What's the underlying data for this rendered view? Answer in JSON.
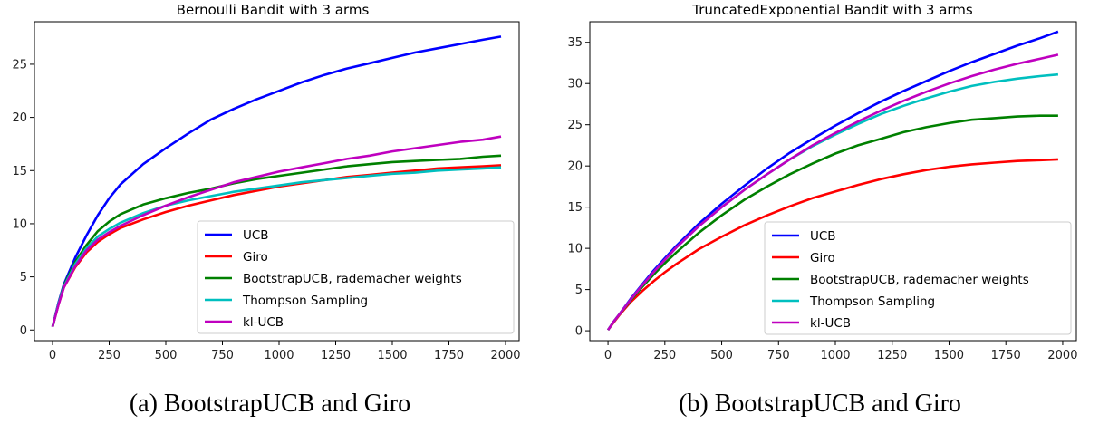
{
  "chart_data": [
    {
      "type": "line",
      "title": "Bernoulli Bandit with 3 arms",
      "caption": "(a) BootstrapUCB and Giro",
      "xlabel": "",
      "ylabel": "",
      "xlim": [
        -80,
        2060
      ],
      "ylim": [
        -1,
        29
      ],
      "xticks": [
        0,
        250,
        500,
        750,
        1000,
        1250,
        1500,
        1750,
        2000
      ],
      "yticks": [
        0,
        5,
        10,
        15,
        20,
        25
      ],
      "grid": false,
      "legend_position": "lower-right",
      "x": [
        0,
        25,
        50,
        100,
        150,
        200,
        250,
        300,
        400,
        500,
        600,
        700,
        800,
        900,
        1000,
        1100,
        1200,
        1300,
        1400,
        1500,
        1600,
        1700,
        1800,
        1900,
        1980
      ],
      "series": [
        {
          "name": "UCB",
          "color": "#0000ff",
          "values": [
            0.3,
            2.5,
            4.3,
            6.8,
            8.9,
            10.8,
            12.4,
            13.7,
            15.6,
            17.1,
            18.5,
            19.8,
            20.8,
            21.7,
            22.5,
            23.3,
            24.0,
            24.6,
            25.1,
            25.6,
            26.1,
            26.5,
            26.9,
            27.3,
            27.6
          ]
        },
        {
          "name": "Giro",
          "color": "#ff0000",
          "values": [
            0.3,
            2.3,
            4.0,
            5.9,
            7.3,
            8.3,
            9.0,
            9.6,
            10.4,
            11.1,
            11.7,
            12.2,
            12.7,
            13.1,
            13.5,
            13.8,
            14.1,
            14.4,
            14.6,
            14.8,
            15.0,
            15.2,
            15.3,
            15.4,
            15.5
          ]
        },
        {
          "name": "BootstrapUCB, rademacher weights",
          "color": "#008000",
          "values": [
            0.3,
            2.4,
            4.2,
            6.4,
            8.0,
            9.3,
            10.2,
            10.9,
            11.8,
            12.4,
            12.9,
            13.3,
            13.8,
            14.2,
            14.5,
            14.8,
            15.1,
            15.4,
            15.6,
            15.8,
            15.9,
            16.0,
            16.1,
            16.3,
            16.4
          ]
        },
        {
          "name": "Thompson Sampling",
          "color": "#00bfbf",
          "values": [
            0.3,
            2.4,
            4.1,
            6.2,
            7.7,
            8.8,
            9.5,
            10.1,
            11.0,
            11.7,
            12.2,
            12.6,
            13.0,
            13.3,
            13.6,
            13.9,
            14.1,
            14.3,
            14.5,
            14.7,
            14.8,
            15.0,
            15.1,
            15.2,
            15.3
          ]
        },
        {
          "name": "kl-UCB",
          "color": "#bf00bf",
          "values": [
            0.3,
            2.3,
            4.0,
            6.0,
            7.5,
            8.5,
            9.2,
            9.8,
            10.8,
            11.7,
            12.5,
            13.2,
            13.9,
            14.4,
            14.9,
            15.3,
            15.7,
            16.1,
            16.4,
            16.8,
            17.1,
            17.4,
            17.7,
            17.9,
            18.2
          ]
        }
      ]
    },
    {
      "type": "line",
      "title": "TruncatedExponential Bandit with 3 arms",
      "caption": "(b) BootstrapUCB and Giro",
      "xlabel": "",
      "ylabel": "",
      "xlim": [
        -80,
        2060
      ],
      "ylim": [
        -1.2,
        37.5
      ],
      "xticks": [
        0,
        250,
        500,
        750,
        1000,
        1250,
        1500,
        1750,
        2000
      ],
      "yticks": [
        0,
        5,
        10,
        15,
        20,
        25,
        30,
        35
      ],
      "grid": false,
      "legend_position": "lower-right",
      "x": [
        0,
        25,
        50,
        100,
        150,
        200,
        250,
        300,
        400,
        500,
        600,
        700,
        800,
        900,
        1000,
        1100,
        1200,
        1300,
        1400,
        1500,
        1600,
        1700,
        1800,
        1900,
        1980
      ],
      "series": [
        {
          "name": "UCB",
          "color": "#0000ff",
          "values": [
            0.1,
            1.1,
            2.0,
            3.9,
            5.6,
            7.3,
            8.8,
            10.3,
            13.0,
            15.4,
            17.6,
            19.7,
            21.6,
            23.3,
            24.9,
            26.4,
            27.8,
            29.1,
            30.3,
            31.5,
            32.6,
            33.6,
            34.6,
            35.5,
            36.3
          ]
        },
        {
          "name": "Giro",
          "color": "#ff0000",
          "values": [
            0.1,
            1.0,
            1.9,
            3.5,
            4.8,
            6.0,
            7.1,
            8.1,
            9.9,
            11.4,
            12.8,
            14.0,
            15.1,
            16.1,
            16.9,
            17.7,
            18.4,
            19.0,
            19.5,
            19.9,
            20.2,
            20.4,
            20.6,
            20.7,
            20.8
          ]
        },
        {
          "name": "BootstrapUCB, rademacher weights",
          "color": "#008000",
          "values": [
            0.1,
            1.1,
            2.0,
            3.7,
            5.3,
            6.8,
            8.2,
            9.5,
            11.9,
            14.0,
            15.9,
            17.5,
            19.0,
            20.3,
            21.5,
            22.5,
            23.3,
            24.1,
            24.7,
            25.2,
            25.6,
            25.8,
            26.0,
            26.1,
            26.1
          ]
        },
        {
          "name": "Thompson Sampling",
          "color": "#00bfbf",
          "values": [
            0.1,
            1.1,
            2.0,
            3.8,
            5.5,
            7.1,
            8.6,
            10.1,
            12.7,
            15.0,
            17.1,
            19.0,
            20.8,
            22.4,
            23.8,
            25.1,
            26.3,
            27.3,
            28.2,
            29.0,
            29.7,
            30.2,
            30.6,
            30.9,
            31.1
          ]
        },
        {
          "name": "kl-UCB",
          "color": "#bf00bf",
          "values": [
            0.1,
            1.1,
            2.0,
            3.8,
            5.5,
            7.1,
            8.6,
            10.1,
            12.7,
            15.0,
            17.1,
            19.0,
            20.8,
            22.5,
            24.0,
            25.4,
            26.7,
            27.9,
            29.0,
            30.0,
            30.9,
            31.7,
            32.4,
            33.0,
            33.5
          ]
        }
      ]
    }
  ]
}
